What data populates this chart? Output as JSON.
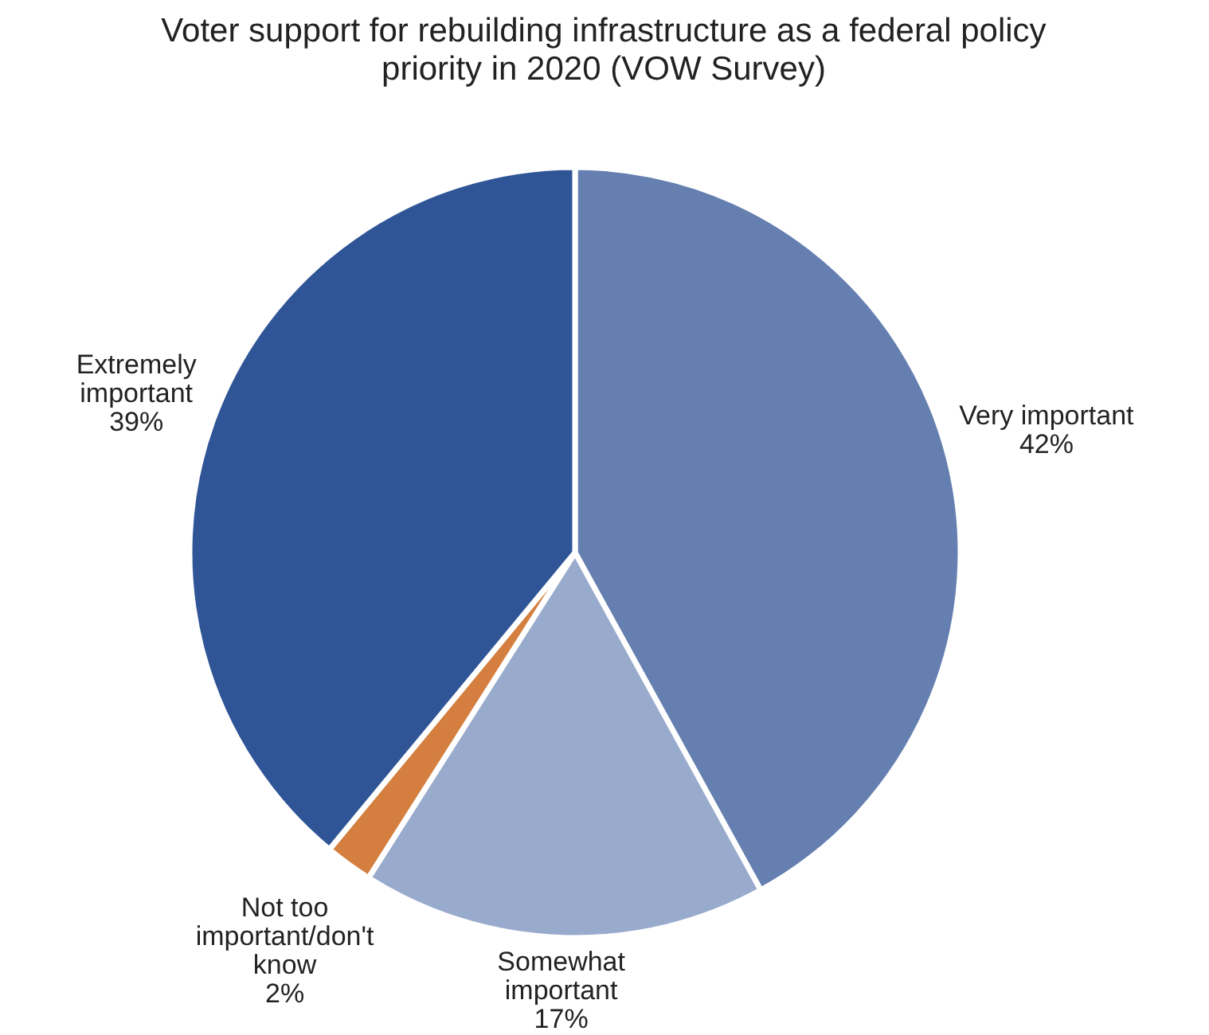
{
  "chart_data": {
    "type": "pie",
    "title": "Voter support for rebuilding infrastructure as a federal policy priority in 2020 (VOW Survey)",
    "categories": [
      "Very important",
      "Somewhat important",
      "Not too important/don't know",
      "Extremely important"
    ],
    "values": [
      42,
      17,
      2,
      39
    ],
    "colors": [
      "#6580b0",
      "#99abcd",
      "#d47f3f",
      "#2f5597"
    ],
    "value_labels": [
      "42%",
      "17%",
      "2%",
      "39%"
    ],
    "legend": false
  }
}
